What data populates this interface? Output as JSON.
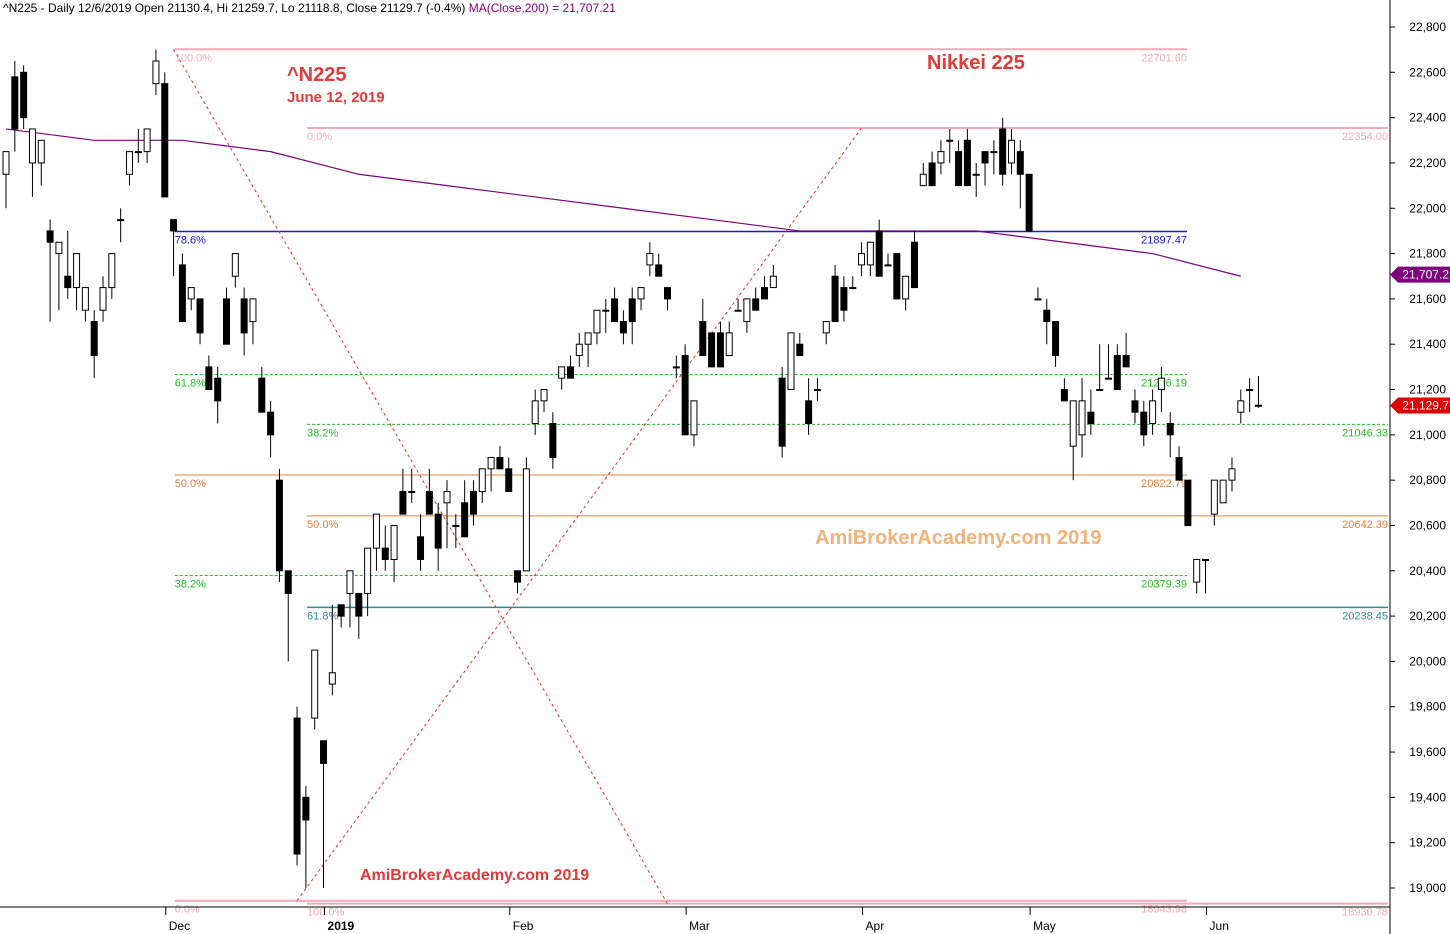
{
  "header": {
    "summary": "^N225 - Daily 12/6/2019 Open 21130.4, Hi 21259.7, Lo 21118.8, Close 21129.7 (-0.4%)",
    "ma_label": "MA(Close,200) = 21,707.21"
  },
  "annotations": {
    "ticker": "^N225",
    "date": "June 12, 2019",
    "title": "Nikkei 225",
    "watermark_center": "AmiBrokerAcademy.com  2019",
    "watermark_bottom": "AmiBrokerAcademy.com  2019"
  },
  "colors": {
    "fib_pink": "#f4a9b8",
    "fib_green": "#1fbf1f",
    "fib_orange": "#e6803a",
    "fib_blue": "#1a1ad6",
    "fib_teal": "#2e8b8b",
    "ma_purple": "#800080",
    "trend_red": "#e03030",
    "last_price_red": "#e00000"
  },
  "chart_data": {
    "type": "candlestick",
    "title": "Nikkei 225",
    "ylim": [
      18860,
      22940
    ],
    "y_ticks": [
      "22,800",
      "22,600",
      "22,400",
      "22,200",
      "22,000",
      "21,800",
      "21,600",
      "21,400",
      "21,200",
      "21,000",
      "20,800",
      "20,600",
      "20,400",
      "20,200",
      "20,000",
      "19,800",
      "19,600",
      "19,400",
      "19,200",
      "19,000"
    ],
    "x_ticks": [
      {
        "label": "Dec",
        "bar": 18
      },
      {
        "label": "2019",
        "bar": 36
      },
      {
        "label": "Feb",
        "bar": 57
      },
      {
        "label": "Mar",
        "bar": 77
      },
      {
        "label": "Apr",
        "bar": 97
      },
      {
        "label": "May",
        "bar": 116
      },
      {
        "label": "Jun",
        "bar": 136
      }
    ],
    "candles_ohlc": [
      [
        22150,
        22250,
        22000,
        22250
      ],
      [
        22580,
        22650,
        22250,
        22350
      ],
      [
        22600,
        22630,
        22350,
        22400
      ],
      [
        22200,
        22350,
        22050,
        22350
      ],
      [
        22200,
        22300,
        22100,
        22300
      ],
      [
        21900,
        21950,
        21500,
        21850
      ],
      [
        21800,
        21850,
        21550,
        21850
      ],
      [
        21700,
        21900,
        21600,
        21650
      ],
      [
        21650,
        21800,
        21550,
        21800
      ],
      [
        21550,
        21600,
        21500,
        21650
      ],
      [
        21500,
        21550,
        21250,
        21350
      ],
      [
        21550,
        21700,
        21500,
        21650
      ],
      [
        21650,
        21800,
        21600,
        21800
      ],
      [
        21950,
        22000,
        21850,
        21950
      ],
      [
        22150,
        22250,
        22100,
        22250
      ],
      [
        22250,
        22350,
        22200,
        22250
      ],
      [
        22250,
        22300,
        22200,
        22350
      ],
      [
        22550,
        22700,
        22500,
        22650
      ],
      [
        22550,
        22600,
        22050,
        22050
      ],
      [
        21950,
        21950,
        21700,
        21900
      ],
      [
        21750,
        21800,
        21600,
        21500
      ],
      [
        21600,
        21650,
        21550,
        21650
      ],
      [
        21600,
        21600,
        21400,
        21450
      ],
      [
        21300,
        21350,
        21200,
        21200
      ],
      [
        21250,
        21300,
        21050,
        21150
      ],
      [
        21600,
        21650,
        21400,
        21400
      ],
      [
        21700,
        21750,
        21650,
        21800
      ],
      [
        21600,
        21650,
        21350,
        21450
      ],
      [
        21500,
        21600,
        21400,
        21600
      ],
      [
        21250,
        21300,
        21100,
        21100
      ],
      [
        21100,
        21150,
        20900,
        21000
      ],
      [
        20800,
        20850,
        20350,
        20400
      ],
      [
        20400,
        20400,
        20000,
        20300
      ],
      [
        19750,
        19800,
        19100,
        19150
      ],
      [
        19400,
        19450,
        19000,
        19300
      ],
      [
        19750,
        20050,
        19700,
        20050
      ],
      [
        19650,
        19650,
        19000,
        19550
      ],
      [
        19900,
        20250,
        19850,
        19950
      ],
      [
        20250,
        20250,
        20150,
        20200
      ],
      [
        20300,
        20350,
        20150,
        20400
      ],
      [
        20300,
        20300,
        20100,
        20200
      ],
      [
        20300,
        20400,
        20200,
        20500
      ],
      [
        20500,
        20550,
        20400,
        20650
      ],
      [
        20500,
        20600,
        20400,
        20450
      ],
      [
        20450,
        20550,
        20350,
        20600
      ],
      [
        20750,
        20850,
        20700,
        20650
      ],
      [
        20750,
        20850,
        20700,
        20750
      ],
      [
        20550,
        20650,
        20400,
        20450
      ],
      [
        20750,
        20850,
        20700,
        20650
      ],
      [
        20650,
        20700,
        20400,
        20500
      ],
      [
        20700,
        20800,
        20500,
        20750
      ],
      [
        20600,
        20650,
        20500,
        20600
      ],
      [
        20700,
        20800,
        20650,
        20550
      ],
      [
        20750,
        20800,
        20600,
        20650
      ],
      [
        20750,
        20800,
        20700,
        20850
      ],
      [
        20850,
        20900,
        20750,
        20900
      ],
      [
        20900,
        20950,
        20850,
        20850
      ],
      [
        20850,
        20900,
        20750,
        20750
      ],
      [
        20400,
        20400,
        20300,
        20350
      ],
      [
        20400,
        20900,
        20400,
        20850
      ],
      [
        21050,
        21200,
        21000,
        21150
      ],
      [
        21150,
        21200,
        21100,
        21200
      ],
      [
        21050,
        21100,
        20850,
        20900
      ],
      [
        21250,
        21300,
        21200,
        21300
      ],
      [
        21300,
        21350,
        21250,
        21250
      ],
      [
        21350,
        21450,
        21300,
        21400
      ],
      [
        21400,
        21450,
        21300,
        21450
      ],
      [
        21450,
        21500,
        21400,
        21550
      ],
      [
        21550,
        21600,
        21450,
        21550
      ],
      [
        21600,
        21650,
        21550,
        21500
      ],
      [
        21500,
        21550,
        21400,
        21450
      ],
      [
        21600,
        21650,
        21400,
        21500
      ],
      [
        21600,
        21650,
        21550,
        21650
      ],
      [
        21750,
        21850,
        21700,
        21800
      ],
      [
        21750,
        21800,
        21700,
        21700
      ],
      [
        21650,
        21650,
        21550,
        21600
      ],
      [
        21300,
        21350,
        21250,
        21300
      ],
      [
        21350,
        21400,
        21100,
        21000
      ],
      [
        21000,
        21150,
        20950,
        21150
      ],
      [
        21500,
        21600,
        21350,
        21350
      ],
      [
        21450,
        21450,
        21300,
        21300
      ],
      [
        21450,
        21500,
        21300,
        21300
      ],
      [
        21350,
        21500,
        21350,
        21450
      ],
      [
        21550,
        21600,
        21550,
        21550
      ],
      [
        21500,
        21600,
        21450,
        21600
      ],
      [
        21600,
        21650,
        21550,
        21550
      ],
      [
        21650,
        21700,
        21600,
        21600
      ],
      [
        21650,
        21750,
        21650,
        21700
      ],
      [
        21250,
        21300,
        20900,
        20950
      ],
      [
        21200,
        21450,
        21200,
        21450
      ],
      [
        21400,
        21450,
        21350,
        21350
      ],
      [
        21150,
        21250,
        21000,
        21050
      ],
      [
        21200,
        21250,
        21150,
        21200
      ],
      [
        21450,
        21500,
        21400,
        21500
      ],
      [
        21700,
        21750,
        21500,
        21500
      ],
      [
        21650,
        21700,
        21500,
        21550
      ],
      [
        21650,
        21700,
        21650,
        21650
      ],
      [
        21750,
        21850,
        21700,
        21800
      ],
      [
        21750,
        21850,
        21700,
        21850
      ],
      [
        21900,
        21950,
        21800,
        21700
      ],
      [
        21750,
        21800,
        21750,
        21750
      ],
      [
        21800,
        21800,
        21650,
        21600
      ],
      [
        21600,
        21650,
        21550,
        21700
      ],
      [
        21850,
        21900,
        21800,
        21650
      ],
      [
        22100,
        22200,
        22100,
        22150
      ],
      [
        22200,
        22250,
        22150,
        22100
      ],
      [
        22200,
        22300,
        22150,
        22250
      ],
      [
        22300,
        22350,
        22200,
        22300
      ],
      [
        22250,
        22300,
        22100,
        22100
      ],
      [
        22300,
        22350,
        22150,
        22100
      ],
      [
        22150,
        22200,
        22050,
        22150
      ],
      [
        22250,
        22250,
        22100,
        22200
      ],
      [
        22250,
        22300,
        22150,
        22250
      ],
      [
        22350,
        22400,
        22100,
        22150
      ],
      [
        22200,
        22350,
        22150,
        22300
      ],
      [
        22250,
        22300,
        22000,
        22150
      ],
      [
        22150,
        22150,
        21900,
        21900
      ],
      [
        21600,
        21650,
        21600,
        21600
      ],
      [
        21550,
        21600,
        21400,
        21500
      ],
      [
        21500,
        21500,
        21300,
        21350
      ],
      [
        21200,
        21250,
        21150,
        21150
      ],
      [
        20950,
        21100,
        20800,
        21150
      ],
      [
        21000,
        21250,
        20900,
        21150
      ],
      [
        21100,
        21200,
        21000,
        21050
      ],
      [
        21200,
        21400,
        21200,
        21200
      ],
      [
        21250,
        21400,
        21250,
        21250
      ],
      [
        21350,
        21400,
        21200,
        21200
      ],
      [
        21350,
        21450,
        21300,
        21300
      ],
      [
        21150,
        21200,
        21050,
        21100
      ],
      [
        21100,
        21150,
        20950,
        21000
      ],
      [
        21050,
        21200,
        21000,
        21150
      ],
      [
        21200,
        21300,
        21100,
        21250
      ],
      [
        21050,
        21100,
        20900,
        21000
      ],
      [
        20900,
        20950,
        20800,
        20800
      ],
      [
        20800,
        20800,
        20600,
        20600
      ],
      [
        20350,
        20450,
        20300,
        20450
      ],
      [
        20450,
        20450,
        20300,
        20450
      ],
      [
        20650,
        20650,
        20600,
        20800
      ],
      [
        20700,
        20800,
        20700,
        20800
      ],
      [
        20800,
        20900,
        20750,
        20850
      ],
      [
        21100,
        21200,
        21050,
        21150
      ],
      [
        21200,
        21250,
        21100,
        21200
      ],
      [
        21130.4,
        21259.7,
        21118.8,
        21129.7
      ]
    ],
    "ma200": [
      [
        0,
        22350
      ],
      [
        10,
        22300
      ],
      [
        20,
        22300
      ],
      [
        30,
        22250
      ],
      [
        40,
        22150
      ],
      [
        50,
        22100
      ],
      [
        60,
        22050
      ],
      [
        70,
        22000
      ],
      [
        80,
        21950
      ],
      [
        90,
        21900
      ],
      [
        100,
        21900
      ],
      [
        110,
        21900
      ],
      [
        120,
        21850
      ],
      [
        130,
        21800
      ],
      [
        140,
        21700
      ]
    ],
    "fib_levels": [
      {
        "label_left": "100.0%",
        "label_right": "22701.60",
        "value": 22701.6,
        "start_bar": 18,
        "color": "fib_pink"
      },
      {
        "label_left": "0.0%",
        "label_right": "22354.00",
        "value": 22354.0,
        "start_bar": 33,
        "color": "fib_pink"
      },
      {
        "label_left": "78.6%",
        "label_right": "21897.47",
        "value": 21897.47,
        "start_bar": 18,
        "color": "fib_blue"
      },
      {
        "label_left": "61.8%",
        "label_right": "21266.19",
        "value": 21266.19,
        "start_bar": 18,
        "color": "fib_green"
      },
      {
        "label_left": "38.2%",
        "label_right": "21046.33",
        "value": 21046.33,
        "start_bar": 33,
        "color": "fib_green"
      },
      {
        "label_left": "50.0%",
        "label_right": "20822.79",
        "value": 20822.79,
        "start_bar": 18,
        "color": "fib_orange"
      },
      {
        "label_left": "50.0%",
        "label_right": "20642.39",
        "value": 20642.39,
        "start_bar": 33,
        "color": "fib_orange"
      },
      {
        "label_left": "38.2%",
        "label_right": "20379.39",
        "value": 20379.39,
        "start_bar": 18,
        "color": "fib_green"
      },
      {
        "label_left": "61.8%",
        "label_right": "20238.45",
        "value": 20238.45,
        "start_bar": 33,
        "color": "fib_teal"
      },
      {
        "label_left": "0.0%",
        "label_right": "18943.98",
        "value": 18943.98,
        "start_bar": 18,
        "color": "fib_pink"
      },
      {
        "label_left": "100.0%",
        "label_right": "18930.78",
        "value": 18930.78,
        "start_bar": 33,
        "color": "fib_pink"
      }
    ],
    "trend_lines": [
      {
        "from": [
          19,
          22701.6
        ],
        "to": [
          75,
          18930.0
        ]
      },
      {
        "from": [
          33,
          18943.98
        ],
        "to": [
          97,
          22354.0
        ]
      }
    ],
    "price_tags": [
      {
        "label": "21,707.2",
        "value": 21707.2,
        "color": "ma_purple"
      },
      {
        "label": "21,129.7",
        "value": 21129.7,
        "color": "last_price_red"
      }
    ]
  }
}
